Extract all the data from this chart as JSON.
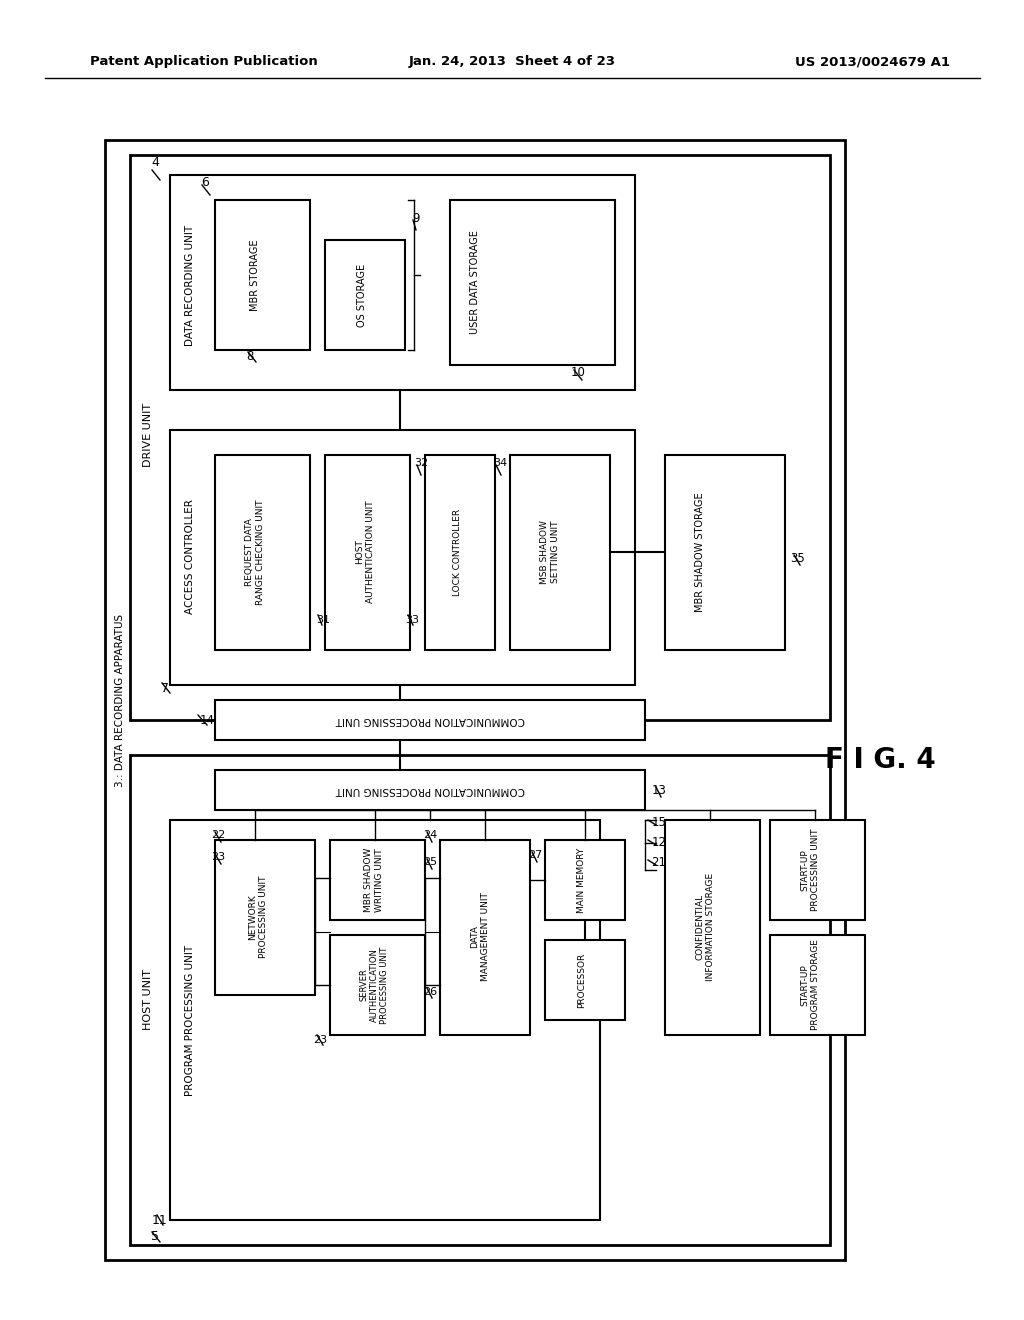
{
  "title_left": "Patent Application Publication",
  "title_mid": "Jan. 24, 2013  Sheet 4 of 23",
  "title_right": "US 2013/0024679 A1",
  "background": "#ffffff"
}
